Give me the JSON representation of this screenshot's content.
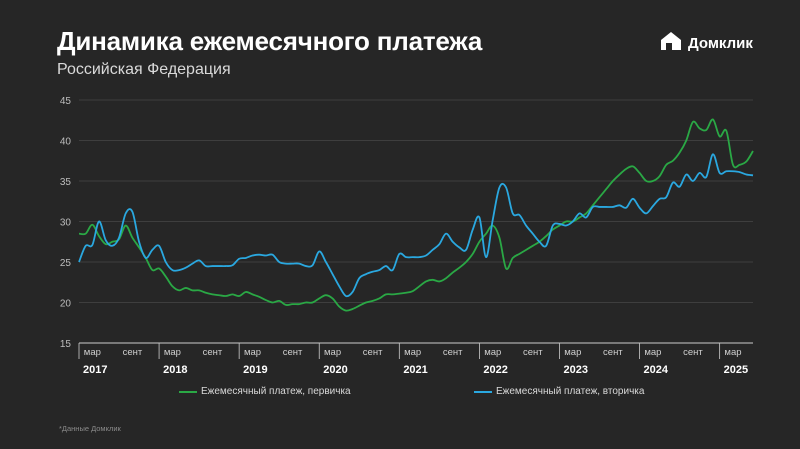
{
  "header": {
    "title": "Динамика ежемесячного платежа",
    "subtitle": "Российская Федерация"
  },
  "logo": {
    "icon": "house-logo-icon",
    "text": "Домклик"
  },
  "footnote": "*Данные Домклик",
  "colors": {
    "background": "#262626",
    "primary": "#2aa845",
    "secondary": "#2aa8e0",
    "grid": "#474747",
    "axis": "#cccccc"
  },
  "chart_data": {
    "type": "line",
    "title": "Динамика ежемесячного платежа",
    "xlabel": "",
    "ylabel": "",
    "ylim": [
      15,
      45
    ],
    "yticks": [
      15,
      20,
      25,
      30,
      35,
      40,
      45
    ],
    "xlim": [
      "2017-01",
      "2025-06"
    ],
    "grid": true,
    "legend_position": "bottom",
    "month_tick_labels": [
      "мар",
      "сент"
    ],
    "years": [
      "2017",
      "2018",
      "2019",
      "2020",
      "2021",
      "2022",
      "2023",
      "2024",
      "2025"
    ],
    "x": [
      "2017-01",
      "2017-02",
      "2017-03",
      "2017-04",
      "2017-05",
      "2017-06",
      "2017-07",
      "2017-08",
      "2017-09",
      "2017-10",
      "2017-11",
      "2017-12",
      "2018-01",
      "2018-02",
      "2018-03",
      "2018-04",
      "2018-05",
      "2018-06",
      "2018-07",
      "2018-08",
      "2018-09",
      "2018-10",
      "2018-11",
      "2018-12",
      "2019-01",
      "2019-02",
      "2019-03",
      "2019-04",
      "2019-05",
      "2019-06",
      "2019-07",
      "2019-08",
      "2019-09",
      "2019-10",
      "2019-11",
      "2019-12",
      "2020-01",
      "2020-02",
      "2020-03",
      "2020-04",
      "2020-05",
      "2020-06",
      "2020-07",
      "2020-08",
      "2020-09",
      "2020-10",
      "2020-11",
      "2020-12",
      "2021-01",
      "2021-02",
      "2021-03",
      "2021-04",
      "2021-05",
      "2021-06",
      "2021-07",
      "2021-08",
      "2021-09",
      "2021-10",
      "2021-11",
      "2021-12",
      "2022-01",
      "2022-02",
      "2022-03",
      "2022-04",
      "2022-05",
      "2022-06",
      "2022-07",
      "2022-08",
      "2022-09",
      "2022-10",
      "2022-11",
      "2022-12",
      "2023-01",
      "2023-02",
      "2023-03",
      "2023-04",
      "2023-05",
      "2023-06",
      "2023-07",
      "2023-08",
      "2023-09",
      "2023-10",
      "2023-11",
      "2023-12",
      "2024-01",
      "2024-02",
      "2024-03",
      "2024-04",
      "2024-05",
      "2024-06",
      "2024-07",
      "2024-08",
      "2024-09",
      "2024-10",
      "2024-11",
      "2024-12",
      "2025-01",
      "2025-02",
      "2025-03",
      "2025-04",
      "2025-05",
      "2025-06"
    ],
    "series": [
      {
        "name": "Ежемесячный платеж, первичка",
        "color": "#2aa845",
        "values": [
          28.5,
          28.5,
          29.6,
          28.2,
          27.2,
          27.5,
          27.8,
          29.5,
          28.0,
          26.8,
          25.5,
          24.0,
          24.2,
          23.2,
          22.0,
          21.5,
          21.8,
          21.5,
          21.5,
          21.2,
          21.0,
          20.9,
          20.8,
          21.0,
          20.8,
          21.3,
          21.0,
          20.7,
          20.3,
          20.0,
          20.2,
          19.7,
          19.8,
          19.8,
          20.0,
          20.0,
          20.5,
          20.9,
          20.5,
          19.5,
          19.0,
          19.2,
          19.6,
          20.0,
          20.2,
          20.5,
          21.0,
          21.0,
          21.1,
          21.2,
          21.4,
          22.0,
          22.6,
          22.8,
          22.6,
          23.0,
          23.7,
          24.3,
          25.0,
          26.0,
          27.5,
          28.5,
          29.5,
          28.0,
          24.2,
          25.5,
          26.0,
          26.5,
          27.0,
          27.5,
          28.2,
          29.0,
          29.5,
          30.0,
          30.0,
          30.5,
          31.0,
          32.0,
          33.0,
          34.0,
          35.0,
          35.8,
          36.5,
          36.8,
          36.0,
          35.0,
          35.0,
          35.6,
          37.0,
          37.5,
          38.5,
          40.0,
          42.3,
          41.5,
          41.3,
          42.6,
          40.5,
          41.2,
          37.0,
          37.0,
          37.4,
          38.7
        ]
      },
      {
        "name": "Ежемесячный платеж, вторичка",
        "color": "#2aa8e0",
        "values": [
          25.0,
          27.0,
          27.1,
          30.0,
          27.7,
          27.0,
          28.0,
          31.0,
          31.2,
          27.5,
          25.5,
          26.5,
          27.0,
          25.0,
          24.0,
          24.0,
          24.3,
          24.8,
          25.2,
          24.5,
          24.5,
          24.5,
          24.5,
          24.6,
          25.4,
          25.5,
          25.8,
          25.9,
          25.8,
          25.9,
          25.0,
          24.8,
          24.8,
          24.8,
          24.5,
          24.6,
          26.3,
          25.0,
          23.5,
          22.0,
          20.8,
          21.3,
          23.0,
          23.5,
          23.8,
          24.0,
          24.5,
          24.0,
          26.0,
          25.6,
          25.6,
          25.6,
          25.8,
          26.5,
          27.2,
          28.5,
          27.5,
          26.8,
          26.5,
          29.0,
          30.5,
          25.6,
          30.2,
          34.2,
          34.2,
          31.0,
          30.8,
          29.5,
          28.5,
          27.5,
          27.0,
          29.5,
          29.7,
          29.5,
          30.0,
          31.0,
          30.5,
          31.8,
          31.8,
          31.8,
          31.8,
          32.0,
          31.7,
          32.8,
          31.7,
          31.0,
          31.9,
          32.8,
          33.0,
          34.8,
          34.3,
          35.8,
          35.0,
          36.0,
          35.5,
          38.3,
          36.0,
          36.2,
          36.2,
          36.1,
          35.8,
          35.7
        ]
      }
    ]
  }
}
